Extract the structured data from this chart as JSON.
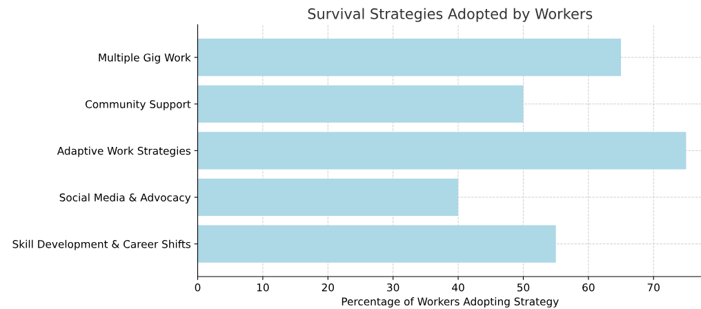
{
  "chart_data": {
    "type": "bar",
    "orientation": "horizontal",
    "title": "Survival Strategies Adopted by Workers",
    "xlabel": "Percentage of Workers Adopting Strategy",
    "categories": [
      "Multiple Gig Work",
      "Community Support",
      "Adaptive Work Strategies",
      "Social Media & Advocacy",
      "Skill Development & Career Shifts"
    ],
    "values": [
      65,
      50,
      75,
      40,
      55
    ],
    "color": "#add8e6",
    "xlim": [
      0,
      77.5
    ],
    "xticks": [
      0,
      10,
      20,
      30,
      40,
      50,
      60,
      70
    ],
    "grid": true
  }
}
